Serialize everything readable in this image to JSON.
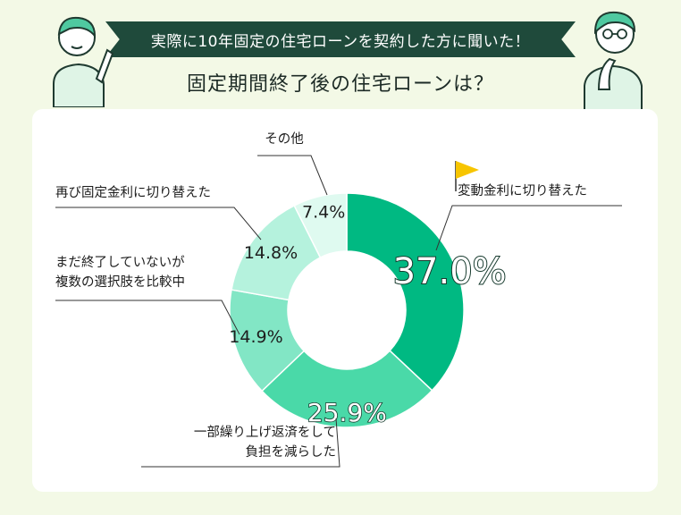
{
  "header": {
    "banner": "実際に10年固定の住宅ローンを契約した方に聞いた！",
    "title": "固定期間終了後の住宅ローンは？"
  },
  "chart_data": {
    "type": "pie",
    "donut": true,
    "categories": [
      "変動金利に切り替えた",
      "一部繰り上げ返済をして負担を減らした",
      "まだ終了していないが複数の選択肢を比較中",
      "再び固定金利に切り替えた",
      "その他"
    ],
    "label_lines": [
      [
        "変動金利に切り替えた"
      ],
      [
        "一部繰り上げ返済をして",
        "負担を減らした"
      ],
      [
        "まだ終了していないが",
        "複数の選択肢を比較中"
      ],
      [
        "再び固定金利に切り替えた"
      ],
      [
        "その他"
      ]
    ],
    "values": [
      37.0,
      25.9,
      14.9,
      14.8,
      7.4
    ],
    "value_labels": [
      "37.0%",
      "25.9%",
      "14.9%",
      "14.8%",
      "7.4%"
    ],
    "colors": [
      "#00b982",
      "#4ad9a8",
      "#82e6c5",
      "#b5f2dd",
      "#dffaf0"
    ],
    "highlight_color": "#f7c500"
  }
}
